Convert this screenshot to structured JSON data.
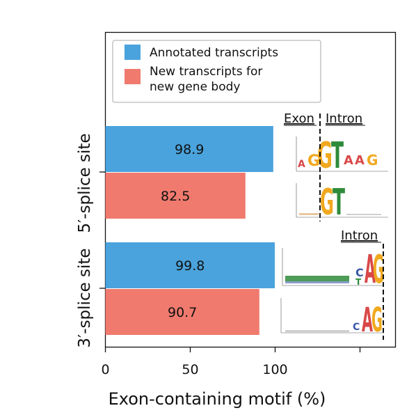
{
  "chart_data": {
    "type": "bar",
    "orientation": "horizontal",
    "xlabel": "Exon-containing motif (%)",
    "xlim": [
      0,
      170
    ],
    "xticks": [
      0,
      50,
      100,
      150
    ],
    "xtick_labels": [
      "0",
      "50",
      "100",
      ""
    ],
    "categories": [
      "5′-splice site",
      "3′-splice site"
    ],
    "series": [
      {
        "name": "Annotated transcripts",
        "color": "#4aa3dc",
        "values": [
          98.9,
          99.8
        ]
      },
      {
        "name": "New transcripts for new gene body",
        "color": "#f07a6e",
        "values": [
          82.5,
          90.7
        ]
      }
    ],
    "data_labels": [
      [
        "98.9",
        "82.5"
      ],
      [
        "99.8",
        "90.7"
      ]
    ],
    "legend": {
      "placement": "top-left",
      "entries": [
        {
          "label_lines": [
            "Annotated transcripts"
          ]
        },
        {
          "label_lines": [
            "New transcripts for",
            "new gene body"
          ]
        }
      ]
    },
    "motif_annotations": {
      "exon_label": "Exon",
      "intron_label_5prime": "Intron",
      "intron_label_3prime": "Intron"
    },
    "grid": false
  },
  "colors": {
    "blue": "#4aa3dc",
    "red": "#f07a6e",
    "A": "#d94848",
    "G": "#f0a81e",
    "T": "#2e8b3a",
    "C": "#3a5aa8"
  }
}
